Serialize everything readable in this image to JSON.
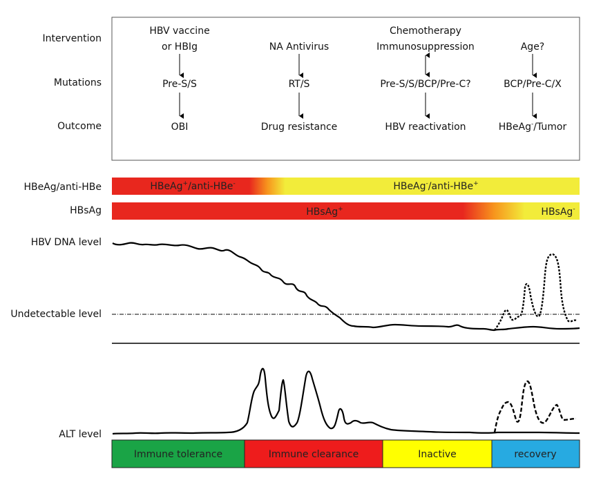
{
  "rows": {
    "intervention": "Intervention",
    "mutations": "Mutations",
    "outcome": "Outcome",
    "hbeag": "HBeAg/anti-HBe",
    "hbsag": "HBsAg",
    "hbv_dna": "HBV DNA level",
    "undetectable": "Undetectable level",
    "alt": "ALT level"
  },
  "columns": [
    {
      "intervention": [
        "HBV vaccine",
        "or HBIg"
      ],
      "mutation": "Pre-S/S",
      "outcome": "OBI",
      "arrow1": "down"
    },
    {
      "intervention": [
        "NA Antivirus"
      ],
      "mutation": "RT/S",
      "outcome": "Drug resistance",
      "arrow1": "down"
    },
    {
      "intervention": [
        "Chemotherapy",
        "Immunosuppression"
      ],
      "mutation": "Pre-S/S/BCP/Pre-C?",
      "outcome": "HBV reactivation",
      "arrow1": "both"
    },
    {
      "intervention": [
        "Age?"
      ],
      "mutation": "BCP/Pre-C/X",
      "outcome": "HBeAg",
      "outcome_sup": "-",
      "outcome_suffix": "/Tumor",
      "arrow1": "down"
    }
  ],
  "hbeag_bar": {
    "left": {
      "text": "HBeAg",
      "sup1": "+",
      "mid": "/anti-HBe",
      "sup2": "-"
    },
    "right": {
      "text": "HBeAg",
      "sup1": "-",
      "mid": "/anti-HBe",
      "sup2": "+"
    }
  },
  "hbsag_bar": {
    "left": {
      "text": "HBsAg",
      "sup": "+"
    },
    "right": {
      "text": "HBsAg",
      "sup": "-"
    }
  },
  "phases": [
    {
      "label": "Immune tolerance",
      "color": "#1aa446"
    },
    {
      "label": "Immune clearance",
      "color": "#ee1c1c"
    },
    {
      "label": "Inactive",
      "color": "#ffff00"
    },
    {
      "label": "recovery",
      "color": "#27aae1"
    }
  ],
  "colors": {
    "red": "#e8271e",
    "orange": "#f7941d",
    "yellow": "#f2ec3a"
  }
}
